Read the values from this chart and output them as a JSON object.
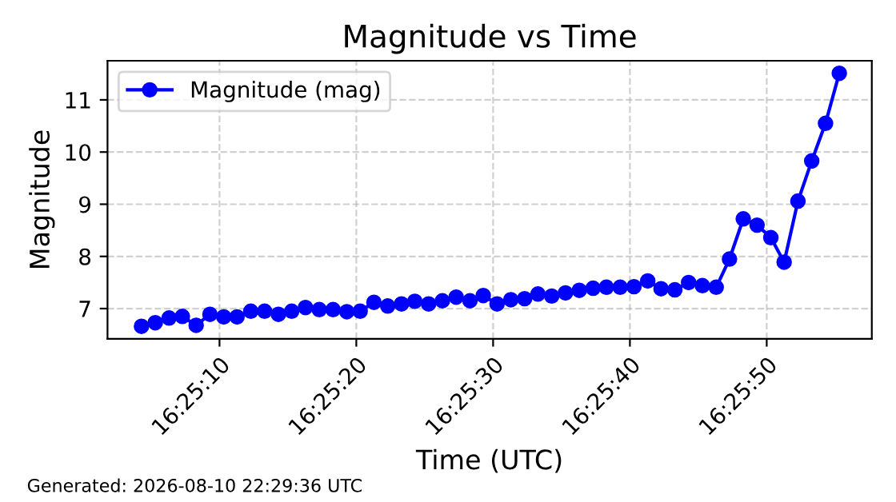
{
  "chart_data": {
    "type": "line",
    "title": "Magnitude vs Time",
    "xlabel": "Time (UTC)",
    "ylabel": "Magnitude",
    "x": [
      16.41786,
      16.41814,
      16.41842,
      16.41869,
      16.41897,
      16.41925,
      16.41953,
      16.4198,
      16.42008,
      16.42036,
      16.42064,
      16.42091,
      16.42119,
      16.42147,
      16.42175,
      16.42203,
      16.4223,
      16.42258,
      16.42286,
      16.42314,
      16.42341,
      16.42369,
      16.42397,
      16.42425,
      16.42453,
      16.4248,
      16.42508,
      16.42536,
      16.42564,
      16.42591,
      16.42619,
      16.42647,
      16.42675,
      16.42703,
      16.4273,
      16.42758,
      16.42786,
      16.42814,
      16.42841,
      16.42869,
      16.42897,
      16.42925,
      16.42953,
      16.4298,
      16.43008,
      16.43036,
      16.43064,
      16.43091,
      16.43119,
      16.43147,
      16.43175,
      16.43203
    ],
    "series": [
      {
        "name": "Magnitude (mag)",
        "color": "#0000ff",
        "values": [
          6.66,
          6.73,
          6.82,
          6.85,
          6.68,
          6.89,
          6.84,
          6.84,
          6.95,
          6.95,
          6.89,
          6.95,
          7.02,
          6.98,
          6.98,
          6.94,
          6.95,
          7.12,
          7.05,
          7.09,
          7.14,
          7.09,
          7.15,
          7.22,
          7.15,
          7.25,
          7.09,
          7.17,
          7.19,
          7.28,
          7.24,
          7.3,
          7.35,
          7.39,
          7.41,
          7.41,
          7.42,
          7.53,
          7.38,
          7.36,
          7.5,
          7.44,
          7.41,
          7.95,
          8.72,
          8.6,
          8.36,
          7.89,
          9.06,
          9.83,
          10.55,
          11.51
        ]
      }
    ],
    "xlim": [
      16.41717,
      16.43269
    ],
    "ylim": [
      6.42,
      11.75
    ],
    "xticks": [
      {
        "value": 16.419444,
        "label": "16:25:10"
      },
      {
        "value": 16.422222,
        "label": "16:25:20"
      },
      {
        "value": 16.425,
        "label": "16:25:30"
      },
      {
        "value": 16.427778,
        "label": "16:25:40"
      },
      {
        "value": 16.430556,
        "label": "16:25:50"
      }
    ],
    "yticks": [
      7,
      8,
      9,
      10,
      11
    ],
    "grid": true,
    "legend": "top left",
    "marker": "circle",
    "line_style": "solid",
    "annotations": [
      "Generated: 2026-08-10 22:29:36 UTC"
    ]
  }
}
